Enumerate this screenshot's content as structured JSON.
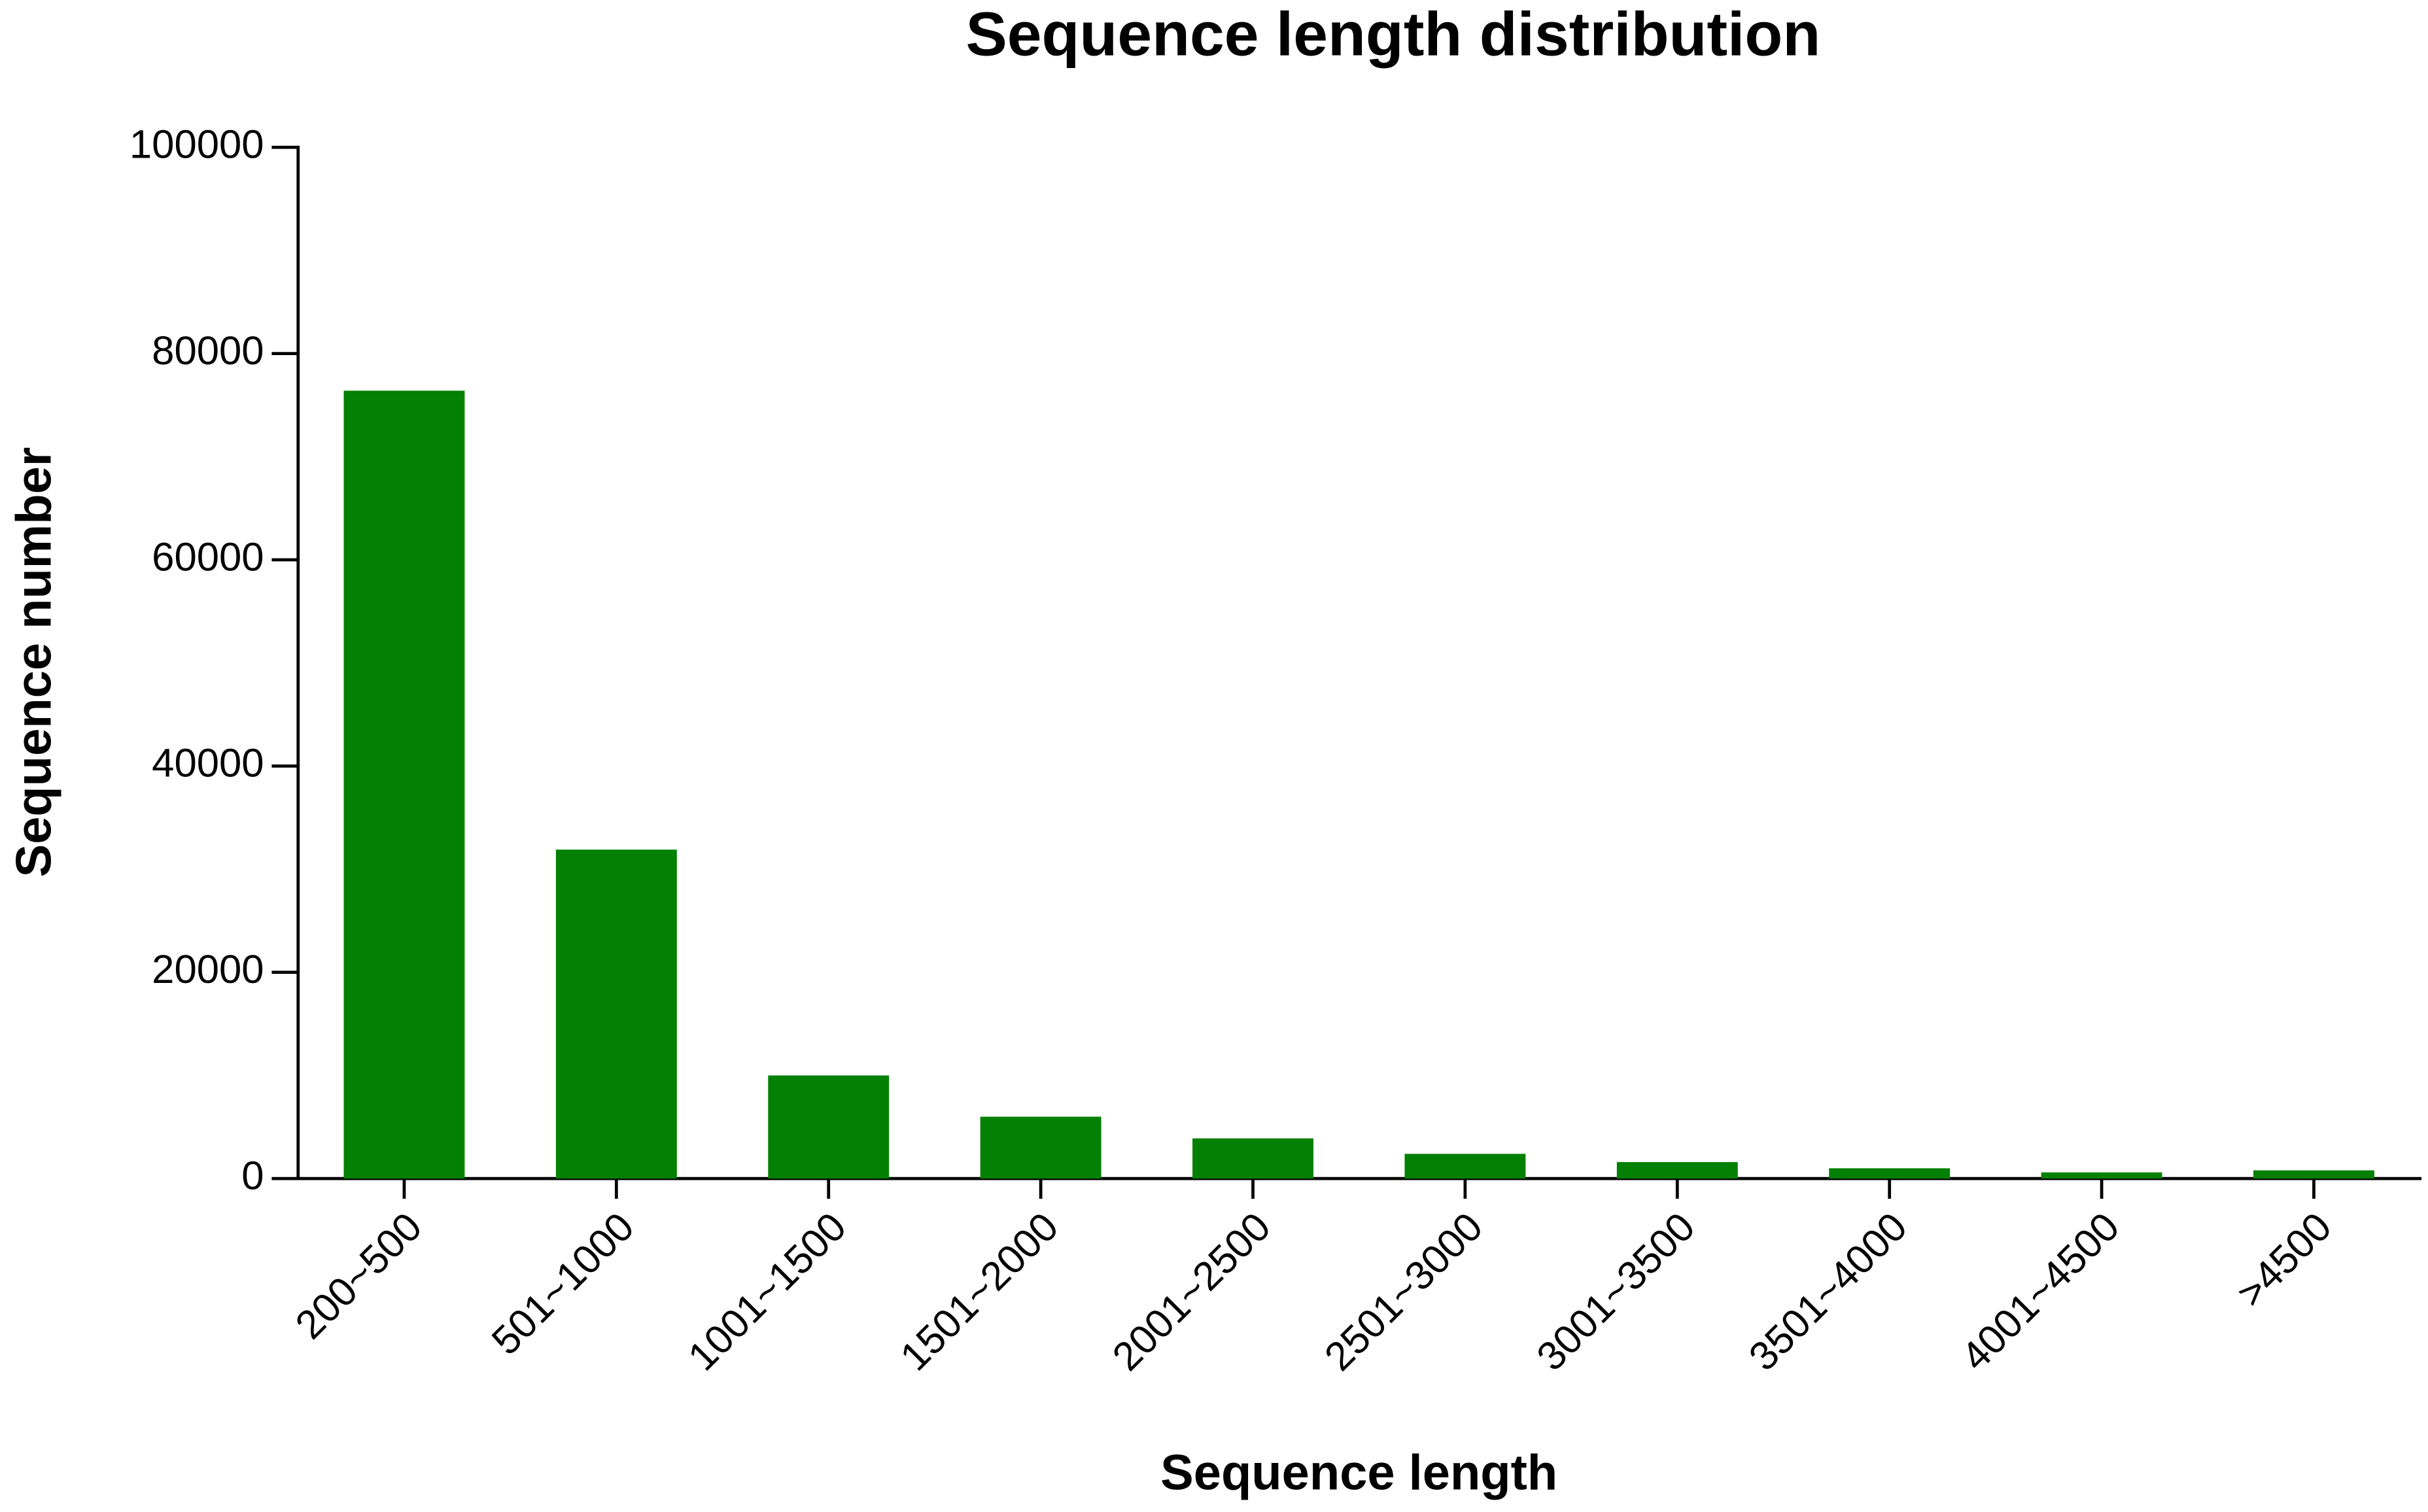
{
  "chart_data": {
    "type": "bar",
    "title": "Sequence length distribution",
    "x_label": "Sequence length",
    "y_label": "Sequence number",
    "categories": [
      "200~500",
      "501~1000",
      "1001~1500",
      "1501~2000",
      "2001~2500",
      "2501~3000",
      "3001~3500",
      "3501~4000",
      "4001~4500",
      ">4500"
    ],
    "values": [
      76400,
      31900,
      10000,
      6000,
      3900,
      2400,
      1600,
      1000,
      600,
      800
    ],
    "color": "#048004",
    "ylim": [
      0,
      100000
    ],
    "yticks": [
      0,
      20000,
      40000,
      60000,
      80000,
      100000
    ],
    "grid": false
  }
}
